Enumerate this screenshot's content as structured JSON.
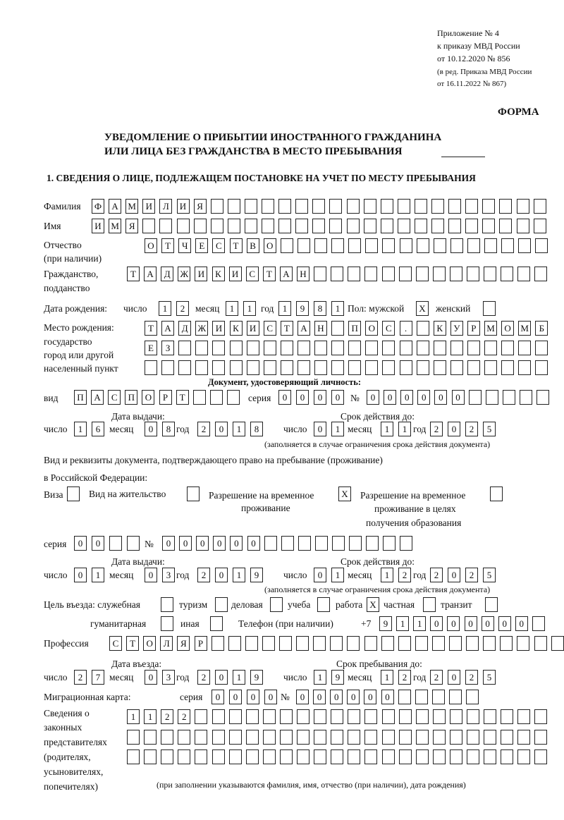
{
  "header": {
    "l1": "Приложение № 4",
    "l2": "к приказу МВД России",
    "l3": "от 10.12.2020 № 856",
    "l4": "(в ред. Приказа МВД России",
    "l5": "от 16.11.2022 № 867)",
    "forma": "ФОРМА"
  },
  "title": {
    "l1": "УВЕДОМЛЕНИЕ О ПРИБЫТИИ ИНОСТРАННОГО ГРАЖДАНИНА",
    "l2": "ИЛИ ЛИЦА БЕЗ ГРАЖДАНСТВА В МЕСТО ПРЕБЫВАНИЯ"
  },
  "section1": "1. СВЕДЕНИЯ О ЛИЦЕ, ПОДЛЕЖАЩЕМ ПОСТАНОВКЕ НА УЧЕТ ПО МЕСТУ ПРЕБЫВАНИЯ",
  "labels": {
    "surname": "Фамилия",
    "name": "Имя",
    "patronymic": "Отчество",
    "patronymic2": "(при наличии)",
    "citizenship": "Гражданство,",
    "citizenship2": "подданство",
    "birth_date": "Дата рождения:",
    "day": "число",
    "month": "месяц",
    "year": "год",
    "sex": "Пол: мужской",
    "female": "женский",
    "birth_place": "Место рождения:",
    "bp2": "государство",
    "bp3": "город или другой",
    "bp4": "населенный пункт",
    "id_doc": "Документ, удостоверяющий личность:",
    "kind": "вид",
    "series": "серия",
    "number": "№",
    "issue_date": "Дата выдачи:",
    "valid_until": "Срок действия до:",
    "valid_note": "(заполняется в случае ограничения срока действия документа)",
    "right_doc1": "Вид и реквизиты документа, подтверждающего право на пребывание (проживание)",
    "right_doc2": "в Российской Федерации:",
    "visa": "Виза",
    "residence": "Вид на жительство",
    "trp1": "Разрешение на временное",
    "trp2": "проживание",
    "trpe1": "Разрешение на временное",
    "trpe2": "проживание в целях",
    "trpe3": "получения образования",
    "purpose": "Цель въезда: служебная",
    "tourism": "туризм",
    "business": "деловая",
    "study": "учеба",
    "work": "работа",
    "private": "частная",
    "transit": "транзит",
    "humanitarian": "гуманитарная",
    "other": "иная",
    "phone": "Телефон (при наличии)",
    "phone_prefix": "+7",
    "profession": "Профессия",
    "entry_date": "Дата въезда:",
    "stay_until": "Срок пребывания до:",
    "migration_card": "Миграционная карта:",
    "reps1": "Сведения о",
    "reps2": "законных",
    "reps3": "представителях",
    "reps4": "(родителях,",
    "reps5": "усыновителях,",
    "reps6": "попечителях)",
    "reps_note": "(при заполнении указываются фамилия, имя, отчество (при наличии), дата рождения)"
  },
  "fields": {
    "surname": [
      "Ф",
      "А",
      "М",
      "И",
      "Л",
      "И",
      "Я",
      "",
      "",
      "",
      "",
      "",
      "",
      "",
      "",
      "",
      "",
      "",
      "",
      "",
      "",
      "",
      "",
      "",
      "",
      "",
      ""
    ],
    "name": [
      "И",
      "М",
      "Я",
      "",
      "",
      "",
      "",
      "",
      "",
      "",
      "",
      "",
      "",
      "",
      "",
      "",
      "",
      "",
      "",
      "",
      "",
      "",
      "",
      "",
      "",
      "",
      ""
    ],
    "patronymic": [
      "О",
      "Т",
      "Ч",
      "Е",
      "С",
      "Т",
      "В",
      "О",
      "",
      "",
      "",
      "",
      "",
      "",
      "",
      "",
      "",
      "",
      "",
      "",
      "",
      "",
      "",
      ""
    ],
    "citizenship": [
      "Т",
      "А",
      "Д",
      "Ж",
      "И",
      "К",
      "И",
      "С",
      "Т",
      "А",
      "Н",
      "",
      "",
      "",
      "",
      "",
      "",
      "",
      "",
      "",
      "",
      "",
      "",
      "",
      ""
    ],
    "birth_day": [
      "1",
      "2"
    ],
    "birth_month": [
      "1",
      "1"
    ],
    "birth_year": [
      "1",
      "9",
      "8",
      "1"
    ],
    "sex_male": [
      "X"
    ],
    "sex_female": [
      ""
    ],
    "birth_place1": [
      "Т",
      "А",
      "Д",
      "Ж",
      "И",
      "К",
      "И",
      "С",
      "Т",
      "А",
      "Н",
      "",
      "П",
      "О",
      "С",
      ".",
      "",
      "К",
      "У",
      "Р",
      "М",
      "О",
      "М",
      "Б"
    ],
    "birth_place2": [
      "Е",
      "З",
      "",
      "",
      "",
      "",
      "",
      "",
      "",
      "",
      "",
      "",
      "",
      "",
      "",
      "",
      "",
      "",
      "",
      "",
      "",
      "",
      "",
      ""
    ],
    "birth_place3": [
      "",
      "",
      "",
      "",
      "",
      "",
      "",
      "",
      "",
      "",
      "",
      "",
      "",
      "",
      "",
      "",
      "",
      "",
      "",
      "",
      "",
      "",
      "",
      ""
    ],
    "id_kind": [
      "П",
      "А",
      "С",
      "П",
      "О",
      "Р",
      "Т",
      "",
      "",
      ""
    ],
    "id_series": [
      "0",
      "0",
      "0",
      "0"
    ],
    "id_number": [
      "0",
      "0",
      "0",
      "0",
      "0",
      "0",
      "",
      "",
      "",
      "",
      ""
    ],
    "id_issue_day": [
      "1",
      "6"
    ],
    "id_issue_month": [
      "0",
      "8"
    ],
    "id_issue_year": [
      "2",
      "0",
      "1",
      "8"
    ],
    "id_valid_day": [
      "0",
      "1"
    ],
    "id_valid_month": [
      "1",
      "1"
    ],
    "id_valid_year": [
      "2",
      "0",
      "2",
      "5"
    ],
    "visa": [
      ""
    ],
    "residence": [
      ""
    ],
    "trp": [
      "X"
    ],
    "trpe": [
      ""
    ],
    "rd_series": [
      "0",
      "0",
      "",
      ""
    ],
    "rd_number": [
      "0",
      "0",
      "0",
      "0",
      "0",
      "0",
      "",
      "",
      "",
      "",
      "",
      "",
      "",
      "",
      ""
    ],
    "rd_issue_day": [
      "0",
      "1"
    ],
    "rd_issue_month": [
      "0",
      "3"
    ],
    "rd_issue_year": [
      "2",
      "0",
      "1",
      "9"
    ],
    "rd_valid_day": [
      "0",
      "1"
    ],
    "rd_valid_month": [
      "1",
      "2"
    ],
    "rd_valid_year": [
      "2",
      "0",
      "2",
      "5"
    ],
    "p_service": [
      ""
    ],
    "p_tourism": [
      ""
    ],
    "p_business": [
      ""
    ],
    "p_study": [
      ""
    ],
    "p_work": [
      "X"
    ],
    "p_private": [
      ""
    ],
    "p_transit": [
      ""
    ],
    "p_humanitarian": [
      ""
    ],
    "p_other": [
      ""
    ],
    "phone": [
      "9",
      "1",
      "1",
      "0",
      "0",
      "0",
      "0",
      "0",
      "0",
      ""
    ],
    "profession": [
      "С",
      "Т",
      "О",
      "Л",
      "Я",
      "Р",
      "",
      "",
      "",
      "",
      "",
      "",
      "",
      "",
      "",
      "",
      "",
      "",
      "",
      "",
      "",
      "",
      "",
      "",
      "",
      "",
      ""
    ],
    "entry_day": [
      "2",
      "7"
    ],
    "entry_month": [
      "0",
      "3"
    ],
    "entry_year": [
      "2",
      "0",
      "1",
      "9"
    ],
    "stay_day": [
      "1",
      "9"
    ],
    "stay_month": [
      "1",
      "2"
    ],
    "stay_year": [
      "2",
      "0",
      "2",
      "5"
    ],
    "mc_series": [
      "0",
      "0",
      "0",
      "0"
    ],
    "mc_number": [
      "0",
      "0",
      "0",
      "0",
      "0",
      "0",
      "",
      "",
      "",
      "",
      ""
    ],
    "reps1": [
      "1",
      "1",
      "2",
      "2",
      "",
      "",
      "",
      "",
      "",
      "",
      "",
      "",
      "",
      "",
      "",
      "",
      "",
      "",
      "",
      "",
      "",
      "",
      "",
      "",
      ""
    ],
    "reps2": [
      "",
      "",
      "",
      "",
      "",
      "",
      "",
      "",
      "",
      "",
      "",
      "",
      "",
      "",
      "",
      "",
      "",
      "",
      "",
      "",
      "",
      "",
      "",
      "",
      ""
    ],
    "reps3": [
      "",
      "",
      "",
      "",
      "",
      "",
      "",
      "",
      "",
      "",
      "",
      "",
      "",
      "",
      "",
      "",
      "",
      "",
      "",
      "",
      "",
      "",
      "",
      "",
      ""
    ]
  }
}
